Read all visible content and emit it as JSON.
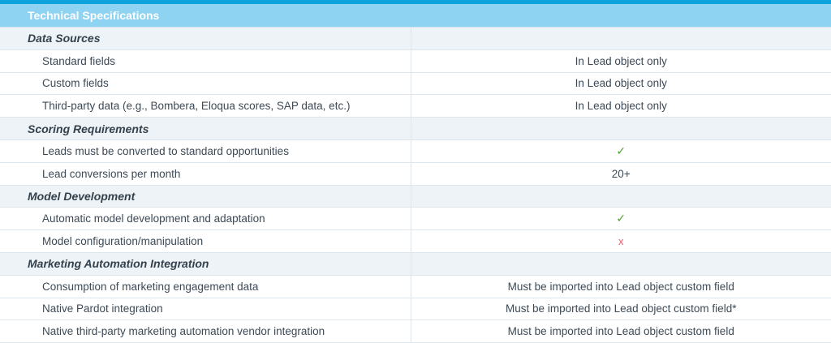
{
  "title": "Technical Specifications",
  "sections": [
    {
      "heading": "Data Sources",
      "rows": [
        {
          "label": "Standard fields",
          "value": "In Lead object only"
        },
        {
          "label": "Custom fields",
          "value": "In Lead object only"
        },
        {
          "label": "Third-party data (e.g., Bombera, Eloqua scores, SAP data, etc.)",
          "value": "In Lead object only"
        }
      ]
    },
    {
      "heading": "Scoring Requirements",
      "rows": [
        {
          "label": "Leads must be converted to standard opportunities",
          "value": "✓"
        },
        {
          "label": "Lead conversions per month",
          "value": "20+"
        }
      ]
    },
    {
      "heading": "Model Development",
      "rows": [
        {
          "label": "Automatic model development and adaptation",
          "value": "✓"
        },
        {
          "label": "Model configuration/manipulation",
          "value": "x"
        }
      ]
    },
    {
      "heading": "Marketing Automation Integration",
      "rows": [
        {
          "label": "Consumption of marketing engagement data",
          "value": "Must be imported into Lead object custom field"
        },
        {
          "label": "Native Pardot integration",
          "value": "Must be imported into Lead object custom field*"
        },
        {
          "label": "Native third-party marketing automation vendor integration",
          "value": "Must be imported into Lead object custom field"
        }
      ]
    }
  ],
  "colors": {
    "accent": "#0ea3dd",
    "header": "#8fd3f3",
    "check": "#4f9e3a",
    "cross": "#ef5a6b"
  }
}
